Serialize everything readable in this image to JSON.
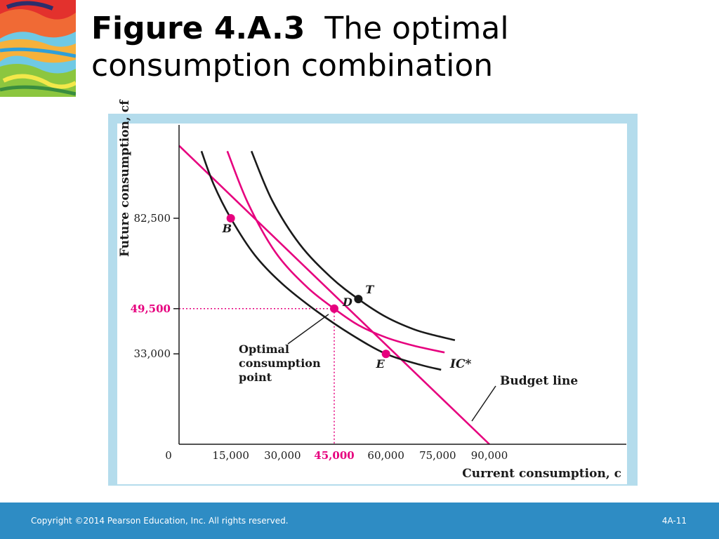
{
  "slide": {
    "title_number": "Figure 4.A.3",
    "title_text": "The optimal consumption combination",
    "copyright": "Copyright ©2014 Pearson Education, Inc. All rights reserved.",
    "slide_number": "4A-11"
  },
  "colors": {
    "accent": "#e6007e",
    "curve": "#1a1a1a",
    "frame": "#b4dcec",
    "footer": "#2e8cc4"
  },
  "chart_data": {
    "type": "line",
    "xlabel": "Current consumption, c",
    "ylabel": "Future consumption, cf",
    "xlim": [
      0,
      118000
    ],
    "ylim": [
      0,
      110000
    ],
    "x_ticks": [
      {
        "value": 0,
        "label": "0"
      },
      {
        "value": 15000,
        "label": "15,000"
      },
      {
        "value": 30000,
        "label": "30,000"
      },
      {
        "value": 45000,
        "label": "45,000",
        "highlight": true
      },
      {
        "value": 60000,
        "label": "60,000"
      },
      {
        "value": 75000,
        "label": "75,000"
      },
      {
        "value": 90000,
        "label": "90,000"
      }
    ],
    "y_ticks": [
      {
        "value": 33000,
        "label": "33,000"
      },
      {
        "value": 49500,
        "label": "49,500",
        "highlight": true
      },
      {
        "value": 82500,
        "label": "82,500"
      }
    ],
    "series": [
      {
        "name": "Budget line",
        "kind": "line",
        "color": "#e6007e",
        "points": [
          [
            0,
            109000
          ],
          [
            90000,
            0
          ]
        ]
      },
      {
        "name": "IC*",
        "kind": "curve",
        "color": "#e6007e",
        "points": [
          [
            14000,
            107000
          ],
          [
            20000,
            88000
          ],
          [
            28000,
            70000
          ],
          [
            37000,
            57500
          ],
          [
            45000,
            49500
          ],
          [
            52000,
            43500
          ],
          [
            60000,
            39000
          ],
          [
            68000,
            36000
          ],
          [
            77000,
            33500
          ]
        ]
      },
      {
        "name": "",
        "kind": "curve",
        "color": "#1a1a1a",
        "points": [
          [
            6500,
            107000
          ],
          [
            10000,
            95000
          ],
          [
            15000,
            82500
          ],
          [
            22000,
            69000
          ],
          [
            30000,
            58500
          ],
          [
            40000,
            48500
          ],
          [
            50000,
            40000
          ],
          [
            60000,
            33000
          ],
          [
            70000,
            29000
          ],
          [
            76000,
            27200
          ]
        ]
      },
      {
        "name": "",
        "kind": "curve",
        "color": "#1a1a1a",
        "points": [
          [
            21000,
            107000
          ],
          [
            27000,
            89000
          ],
          [
            35000,
            73000
          ],
          [
            44000,
            61000
          ],
          [
            52000,
            53000
          ],
          [
            60000,
            46500
          ],
          [
            68000,
            42000
          ],
          [
            74000,
            39800
          ],
          [
            80000,
            38000
          ]
        ]
      }
    ],
    "points": [
      {
        "label": "B",
        "x": 15000,
        "y": 82500,
        "color": "#e6007e"
      },
      {
        "label": "D",
        "x": 45000,
        "y": 49500,
        "color": "#e6007e"
      },
      {
        "label": "E",
        "x": 60000,
        "y": 33000,
        "color": "#e6007e"
      },
      {
        "label": "T",
        "x": 52000,
        "y": 53000,
        "color": "#1a1a1a"
      }
    ],
    "annotations": [
      {
        "lines": [
          "Optimal",
          "consumption",
          "point"
        ],
        "target": "D"
      },
      {
        "lines": [
          "Budget line"
        ],
        "target": "budget"
      },
      {
        "lines": [
          "IC*"
        ],
        "target": "IC*"
      }
    ]
  }
}
